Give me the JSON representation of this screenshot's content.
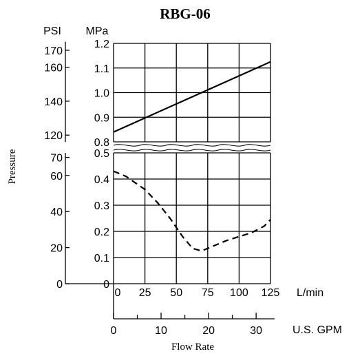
{
  "chart_data": {
    "type": "line",
    "title": "RBG-06",
    "ylabel": "Pressure",
    "xlabel": "Flow Rate",
    "left_axis_unit": "PSI",
    "right_axis_unit": "MPa",
    "x_units": {
      "lpm": "L/min",
      "gpm": "U.S. GPM"
    },
    "x_ticks_lpm": [
      "0",
      "25",
      "50",
      "75",
      "100",
      "125"
    ],
    "x_ticks_gpm": [
      "0",
      "10",
      "20",
      "30"
    ],
    "psi_ticks_upper": [
      "170",
      "160",
      "140",
      "120"
    ],
    "psi_ticks_lower": [
      "70",
      "60",
      "40",
      "20",
      "0"
    ],
    "mpa_ticks_upper": [
      "1.2",
      "1.1",
      "1.0",
      "0.9",
      "0.8"
    ],
    "mpa_ticks_lower": [
      "0.5",
      "0.4",
      "0.3",
      "0.2",
      "0.1",
      "0"
    ],
    "xlim": [
      0,
      125
    ],
    "ylim_upper_mpa": [
      0.8,
      1.2
    ],
    "ylim_lower_mpa": [
      0,
      0.5
    ],
    "grid": true,
    "axis_break": "between 0.5 and 0.8 MPa",
    "series": [
      {
        "style": "solid",
        "color": "#000000",
        "x": [
          0,
          125
        ],
        "y": [
          0.84,
          1.125
        ]
      },
      {
        "style": "dashed",
        "color": "#000000",
        "x": [
          0,
          10,
          25,
          35,
          45,
          55,
          63,
          70,
          80,
          90,
          100,
          110,
          120,
          125
        ],
        "y": [
          0.43,
          0.41,
          0.36,
          0.31,
          0.25,
          0.18,
          0.135,
          0.125,
          0.145,
          0.165,
          0.18,
          0.195,
          0.22,
          0.245
        ]
      }
    ]
  }
}
